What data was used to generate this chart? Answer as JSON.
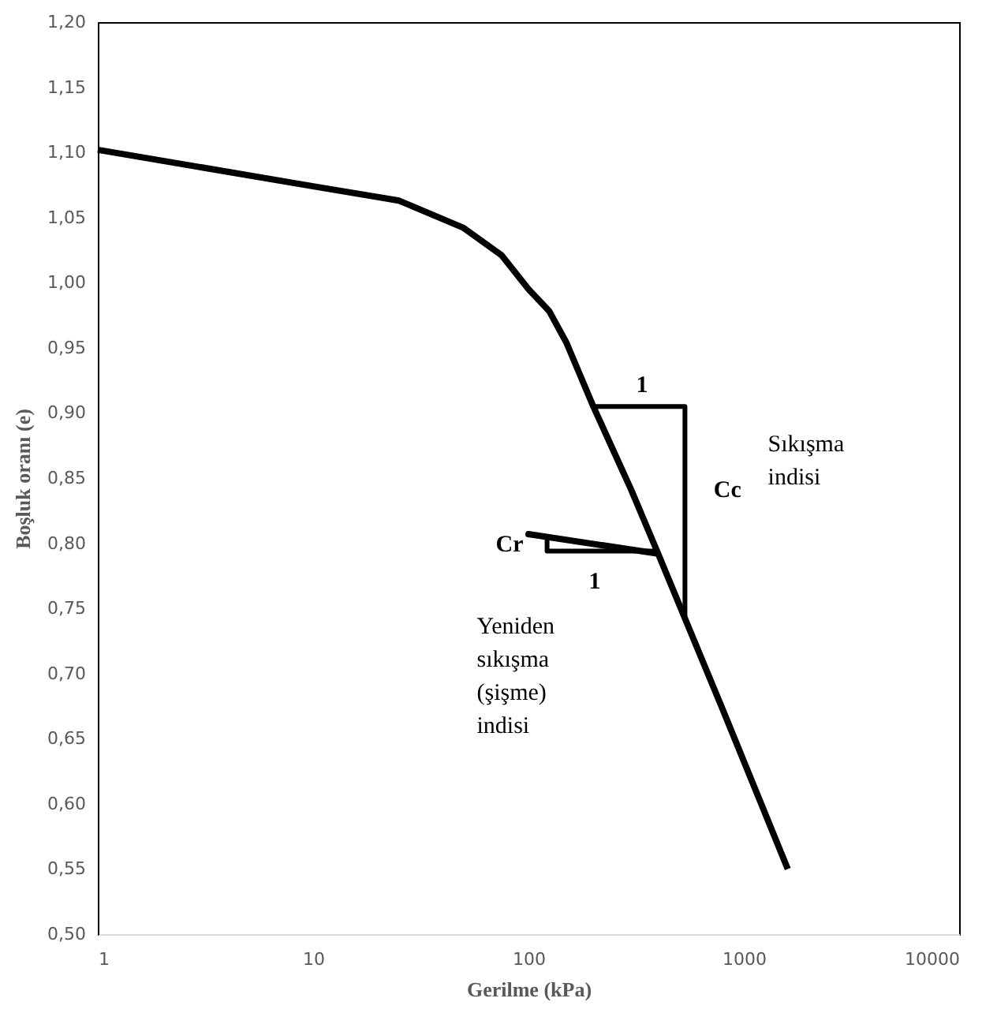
{
  "chart_data": {
    "type": "line",
    "xlabel": "Gerilme (kPa)",
    "ylabel": "Boşluk oranı (e)",
    "log": "x",
    "grid": false,
    "xlim": [
      1,
      10000
    ],
    "xticks": [
      1,
      10,
      100,
      1000,
      10000
    ],
    "ylim": [
      0.5,
      1.2
    ],
    "yticks": [
      {
        "value": 0.5,
        "label": "0,50"
      },
      {
        "value": 0.55,
        "label": "0,55"
      },
      {
        "value": 0.6,
        "label": "0,60"
      },
      {
        "value": 0.65,
        "label": "0,65"
      },
      {
        "value": 0.7,
        "label": "0,70"
      },
      {
        "value": 0.75,
        "label": "0,75"
      },
      {
        "value": 0.8,
        "label": "0,80"
      },
      {
        "value": 0.85,
        "label": "0,85"
      },
      {
        "value": 0.9,
        "label": "0,90"
      },
      {
        "value": 0.95,
        "label": "0,95"
      },
      {
        "value": 1.0,
        "label": "1,00"
      },
      {
        "value": 1.05,
        "label": "1,05"
      },
      {
        "value": 1.1,
        "label": "1,10"
      },
      {
        "value": 1.15,
        "label": "1,15"
      },
      {
        "value": 1.2,
        "label": "1,20"
      }
    ],
    "series": [
      {
        "color": "#000000",
        "x": [
          1,
          10,
          25,
          50,
          75,
          100,
          125,
          150,
          200,
          300,
          400,
          100,
          400,
          800,
          1600
        ],
        "values": [
          1.102,
          1.074,
          1.063,
          1.042,
          1.021,
          0.995,
          0.978,
          0.954,
          0.905,
          0.841,
          0.792,
          0.807,
          0.792,
          0.672,
          0.55
        ]
      },
      {
        "color": "#000000",
        "x": [
          196,
          533,
          533
        ],
        "values": [
          0.905,
          0.905,
          0.744
        ]
      },
      {
        "color": "#000000",
        "x": [
          400,
          122,
          122
        ],
        "values": [
          0.794,
          0.794,
          0.805
        ]
      }
    ],
    "annotations": [
      "1",
      "Cc",
      "Sıkışma\nindisi",
      "Cr",
      "1",
      "Yeniden\nsıkışma\n(şişme)\nindisi"
    ]
  }
}
